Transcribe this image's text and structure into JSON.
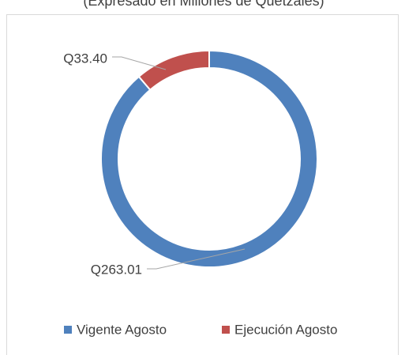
{
  "chart_data": {
    "type": "donut",
    "subtitle": "(Expresado en Millones de Quetzales)",
    "categories": [
      "Vigente Agosto",
      "Ejecución Agosto"
    ],
    "values": [
      263.01,
      33.4
    ],
    "value_labels": [
      "Q263.01",
      "Q33.40"
    ],
    "colors": [
      "#4f81bd",
      "#c0504d"
    ],
    "legend": "bottom"
  }
}
